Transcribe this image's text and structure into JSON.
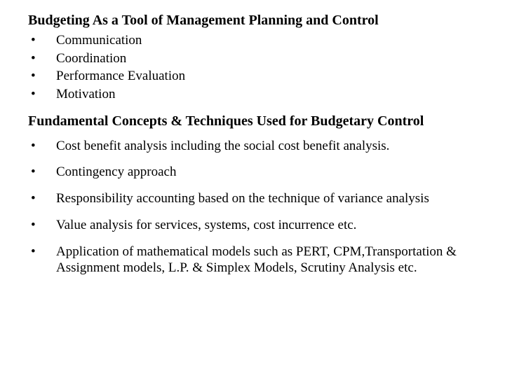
{
  "heading1": "Budgeting As a Tool of Management Planning and Control",
  "list1": {
    "items": [
      "Communication",
      "Coordination",
      "Performance Evaluation",
      "Motivation"
    ]
  },
  "heading2": "Fundamental Concepts & Techniques Used for Budgetary Control",
  "list2": {
    "items": [
      "Cost benefit analysis including the social cost benefit analysis.",
      "Contingency approach",
      "Responsibility accounting based on the technique of variance analysis",
      "Value analysis for services, systems, cost incurrence etc.",
      "Application of mathematical models such as PERT, CPM,Transportation & Assignment models, L.P. & Simplex Models, Scrutiny  Analysis etc."
    ]
  },
  "bullet_char": "•",
  "colors": {
    "text": "#000000",
    "background": "#ffffff"
  },
  "fonts": {
    "family": "Times New Roman",
    "heading_size": 20,
    "body_size": 19
  }
}
